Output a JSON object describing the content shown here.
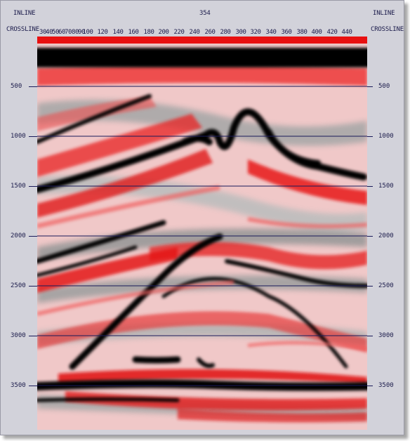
{
  "header": {
    "inline_left": "INLINE",
    "inline_right": "INLINE",
    "crossline_left": "CROSSLINE",
    "crossline_right": "CROSSLINE",
    "inline_value": "354"
  },
  "crossline_ticks": [
    "30",
    "40",
    "50",
    "60",
    "70",
    "80",
    "90",
    "100",
    "120",
    "140",
    "160",
    "180",
    "200",
    "220",
    "240",
    "260",
    "280",
    "300",
    "320",
    "340",
    "360",
    "380",
    "400",
    "420",
    "440"
  ],
  "time_ticks": [
    "500",
    "1000",
    "1500",
    "2000",
    "2500",
    "3000",
    "3500"
  ],
  "colors": {
    "positive": "#e8101a",
    "negative": "#000000",
    "background_panel": "#d2d2da",
    "timeline": "#1a1a5a"
  }
}
